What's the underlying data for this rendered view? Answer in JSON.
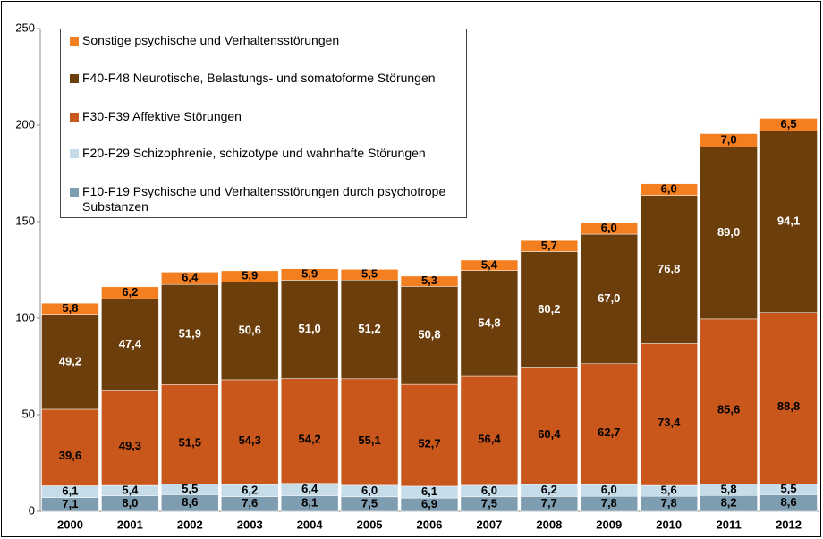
{
  "chart_data": {
    "type": "stacked_bar",
    "categories": [
      "2000",
      "2001",
      "2002",
      "2003",
      "2004",
      "2005",
      "2006",
      "2007",
      "2008",
      "2009",
      "2010",
      "2011",
      "2012"
    ],
    "series": [
      {
        "name": "F10-F19 Psychische und Verhaltensstörungen durch psychotrope Substanzen",
        "color": "#7f9db0",
        "values": [
          7.1,
          8.0,
          8.6,
          7.6,
          8.1,
          7.5,
          6.9,
          7.5,
          7.7,
          7.8,
          7.8,
          8.2,
          8.6
        ],
        "value_labels": [
          "7,1",
          "8,0",
          "8,6",
          "7,6",
          "8,1",
          "7,5",
          "6,9",
          "7,5",
          "7,7",
          "7,8",
          "7,8",
          "8,2",
          "8,6"
        ]
      },
      {
        "name": "F20-F29 Schizophrenie, schizotype und wahnhafte Störungen",
        "color": "#c6dde9",
        "values": [
          6.1,
          5.4,
          5.5,
          6.2,
          6.4,
          6.0,
          6.1,
          6.0,
          6.2,
          6.0,
          5.6,
          5.8,
          5.5
        ],
        "value_labels": [
          "6,1",
          "5,4",
          "5,5",
          "6,2",
          "6,4",
          "6,0",
          "6,1",
          "6,0",
          "6,2",
          "6,0",
          "5,6",
          "5,8",
          "5,5"
        ]
      },
      {
        "name": "F30-F39 Affektive Störungen",
        "color": "#c9571c",
        "values": [
          39.6,
          49.3,
          51.5,
          54.3,
          54.2,
          55.1,
          52.7,
          56.4,
          60.4,
          62.7,
          73.4,
          85.6,
          88.8
        ],
        "value_labels": [
          "39,6",
          "49,3",
          "51,5",
          "54,3",
          "54,2",
          "55,1",
          "52,7",
          "56,4",
          "60,4",
          "62,7",
          "73,4",
          "85,6",
          "88,8"
        ]
      },
      {
        "name": "F40-F48 Neurotische, Belastungs- und somatoforme Störungen",
        "color": "#6b3e0c",
        "values": [
          49.2,
          47.4,
          51.9,
          50.6,
          51.0,
          51.2,
          50.8,
          54.8,
          60.2,
          67.0,
          76.8,
          89.0,
          94.1
        ],
        "value_labels": [
          "49,2",
          "47,4",
          "51,9",
          "50,6",
          "51,0",
          "51,2",
          "50,8",
          "54,8",
          "60,2",
          "67,0",
          "76,8",
          "89,0",
          "94,1"
        ]
      },
      {
        "name": "Sonstige psychische und Verhaltensstörungen",
        "color": "#f47f20",
        "values": [
          5.8,
          6.2,
          6.4,
          5.9,
          5.9,
          5.5,
          5.3,
          5.4,
          5.7,
          6.0,
          6.0,
          7.0,
          6.5
        ],
        "value_labels": [
          "5,8",
          "6,2",
          "6,4",
          "5,9",
          "5,9",
          "5,5",
          "5,3",
          "5,4",
          "5,7",
          "6,0",
          "6,0",
          "7,0",
          "6,5"
        ]
      }
    ],
    "ylim": [
      0,
      250
    ],
    "yticks": [
      0,
      50,
      100,
      150,
      200,
      250
    ],
    "grid": false
  }
}
